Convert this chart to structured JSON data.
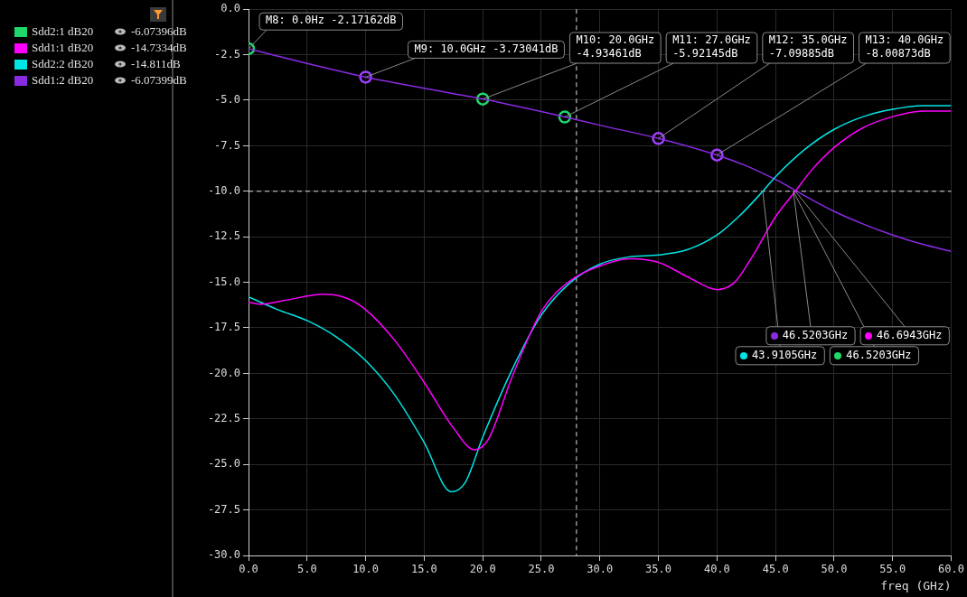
{
  "chart_data": {
    "type": "line",
    "xlabel": "freq (GHz)",
    "xlim": [
      0,
      60
    ],
    "ylim": [
      -30,
      0
    ],
    "xticks": [
      {
        "value": 0,
        "label": "0.0"
      },
      {
        "value": 5,
        "label": "5.0"
      },
      {
        "value": 10,
        "label": "10.0"
      },
      {
        "value": 15,
        "label": "15.0"
      },
      {
        "value": 20,
        "label": "20.0"
      },
      {
        "value": 25,
        "label": "25.0"
      },
      {
        "value": 30,
        "label": "30.0"
      },
      {
        "value": 35,
        "label": "35.0"
      },
      {
        "value": 40,
        "label": "40.0"
      },
      {
        "value": 45,
        "label": "45.0"
      },
      {
        "value": 50,
        "label": "50.0"
      },
      {
        "value": 55,
        "label": "55.0"
      },
      {
        "value": 60,
        "label": "60.0"
      }
    ],
    "yticks": [
      {
        "value": 0,
        "label": "0.0"
      },
      {
        "value": -2.5,
        "label": "-2.5"
      },
      {
        "value": -5,
        "label": "-5.0"
      },
      {
        "value": -7.5,
        "label": "-7.5"
      },
      {
        "value": -10,
        "label": "-10.0"
      },
      {
        "value": -12.5,
        "label": "-12.5"
      },
      {
        "value": -15,
        "label": "-15.0"
      },
      {
        "value": -17.5,
        "label": "-17.5"
      },
      {
        "value": -20,
        "label": "-20.0"
      },
      {
        "value": -22.5,
        "label": "-22.5"
      },
      {
        "value": -25,
        "label": "-25.0"
      },
      {
        "value": -27.5,
        "label": "-27.5"
      },
      {
        "value": -30,
        "label": "-30.0"
      }
    ],
    "grid": true,
    "legend": "left",
    "annotations": [
      "-6.07396dB",
      "-14.7334dB",
      "-14.811dB",
      "-6.07399dB",
      {
        "text": "43.9105GHz",
        "x": 43.9105,
        "y": -10
      },
      {
        "text": "46.6943GHz",
        "x": 46.6943,
        "y": -10
      },
      {
        "text": "46.5203GHz",
        "x": 46.5203,
        "y": -10
      },
      {
        "text": "46.5203GHz",
        "x": 46.5203,
        "y": -10
      }
    ],
    "ref_lines": [
      {
        "axis": "x",
        "value": 28,
        "color": "#dddddd",
        "line_style": "dashed"
      },
      {
        "axis": "y",
        "value": -10,
        "color": "#dddddd",
        "line_style": "dashed"
      }
    ],
    "series": [
      {
        "name": "Sdd2:1 dB20",
        "type": "line",
        "color": "#1fd86a"
      },
      {
        "name": "Sdd1:1 dB20",
        "type": "line",
        "color": "#ff00ff",
        "x": [
          0,
          1,
          3,
          6.5,
          8.5,
          10,
          12.5,
          15,
          17.5,
          19.3,
          20.5,
          22.5,
          25,
          27.5,
          30,
          32.5,
          35,
          37.5,
          40,
          41.5,
          43,
          45,
          46.69,
          48,
          50,
          52.5,
          55,
          57.5,
          60
        ],
        "values": [
          -16.1,
          -16.2,
          -16,
          -15.65,
          -15.9,
          -16.5,
          -18.2,
          -20.5,
          -23,
          -24.2,
          -23.6,
          -20.2,
          -16.6,
          -14.9,
          -14.1,
          -13.7,
          -13.9,
          -14.7,
          -15.4,
          -15,
          -13.6,
          -11.4,
          -10,
          -8.9,
          -7.6,
          -6.5,
          -5.9,
          -5.6,
          -5.6
        ]
      },
      {
        "name": "Sdd2:2 dB20",
        "type": "line",
        "color": "#00e5e5",
        "x": [
          0,
          2.5,
          5,
          7.5,
          10,
          12.5,
          15,
          17.3,
          18.5,
          20,
          22.5,
          25,
          27.5,
          30,
          32.5,
          35,
          37.5,
          40,
          42,
          43.91,
          45,
          47.5,
          50,
          52.5,
          55,
          57.5,
          60
        ],
        "values": [
          -15.8,
          -16.5,
          -17.1,
          -18,
          -19.3,
          -21.2,
          -23.8,
          -26.5,
          -26,
          -23.5,
          -19.8,
          -16.8,
          -15,
          -14,
          -13.6,
          -13.5,
          -13.2,
          -12.4,
          -11.3,
          -10,
          -9.2,
          -7.7,
          -6.6,
          -5.9,
          -5.5,
          -5.3,
          -5.3
        ]
      },
      {
        "name": "Sdd1:2 dB20",
        "type": "line",
        "color": "#8a2be2",
        "x": [
          0,
          2.5,
          5,
          7.5,
          10,
          12.5,
          15,
          17.5,
          20,
          22.5,
          25,
          27,
          30,
          35,
          40,
          42.5,
          45,
          47.5,
          50,
          52.5,
          55,
          57.5,
          60
        ],
        "values": [
          -2.17,
          -2.58,
          -2.98,
          -3.36,
          -3.73,
          -4.04,
          -4.34,
          -4.64,
          -4.93,
          -5.27,
          -5.62,
          -5.92,
          -6.37,
          -7.1,
          -8.01,
          -8.6,
          -9.35,
          -10.25,
          -11.1,
          -11.8,
          -12.4,
          -12.9,
          -13.3
        ]
      },
      {
        "type": "scatter",
        "marker": "circle",
        "color": "#1fd86a",
        "x": [
          0,
          20,
          27
        ],
        "values": [
          -2.17162,
          -4.93461,
          -5.92145
        ],
        "value_labels": [
          "M8: 0.0Hz -2.17162dB",
          "M10: 20.0GHz -4.93461dB",
          "M11: 27.0GHz -5.92145dB"
        ]
      },
      {
        "type": "scatter",
        "marker": "circle",
        "color": "#a040ff",
        "x": [
          10,
          35,
          40
        ],
        "values": [
          -3.73041,
          -7.09885,
          -8.00873
        ],
        "value_labels": [
          "M9: 10.0GHz -3.73041dB",
          "M12: 35.0GHz -7.09885dB",
          "M13: 40.0GHz -8.00873dB"
        ]
      }
    ]
  }
}
